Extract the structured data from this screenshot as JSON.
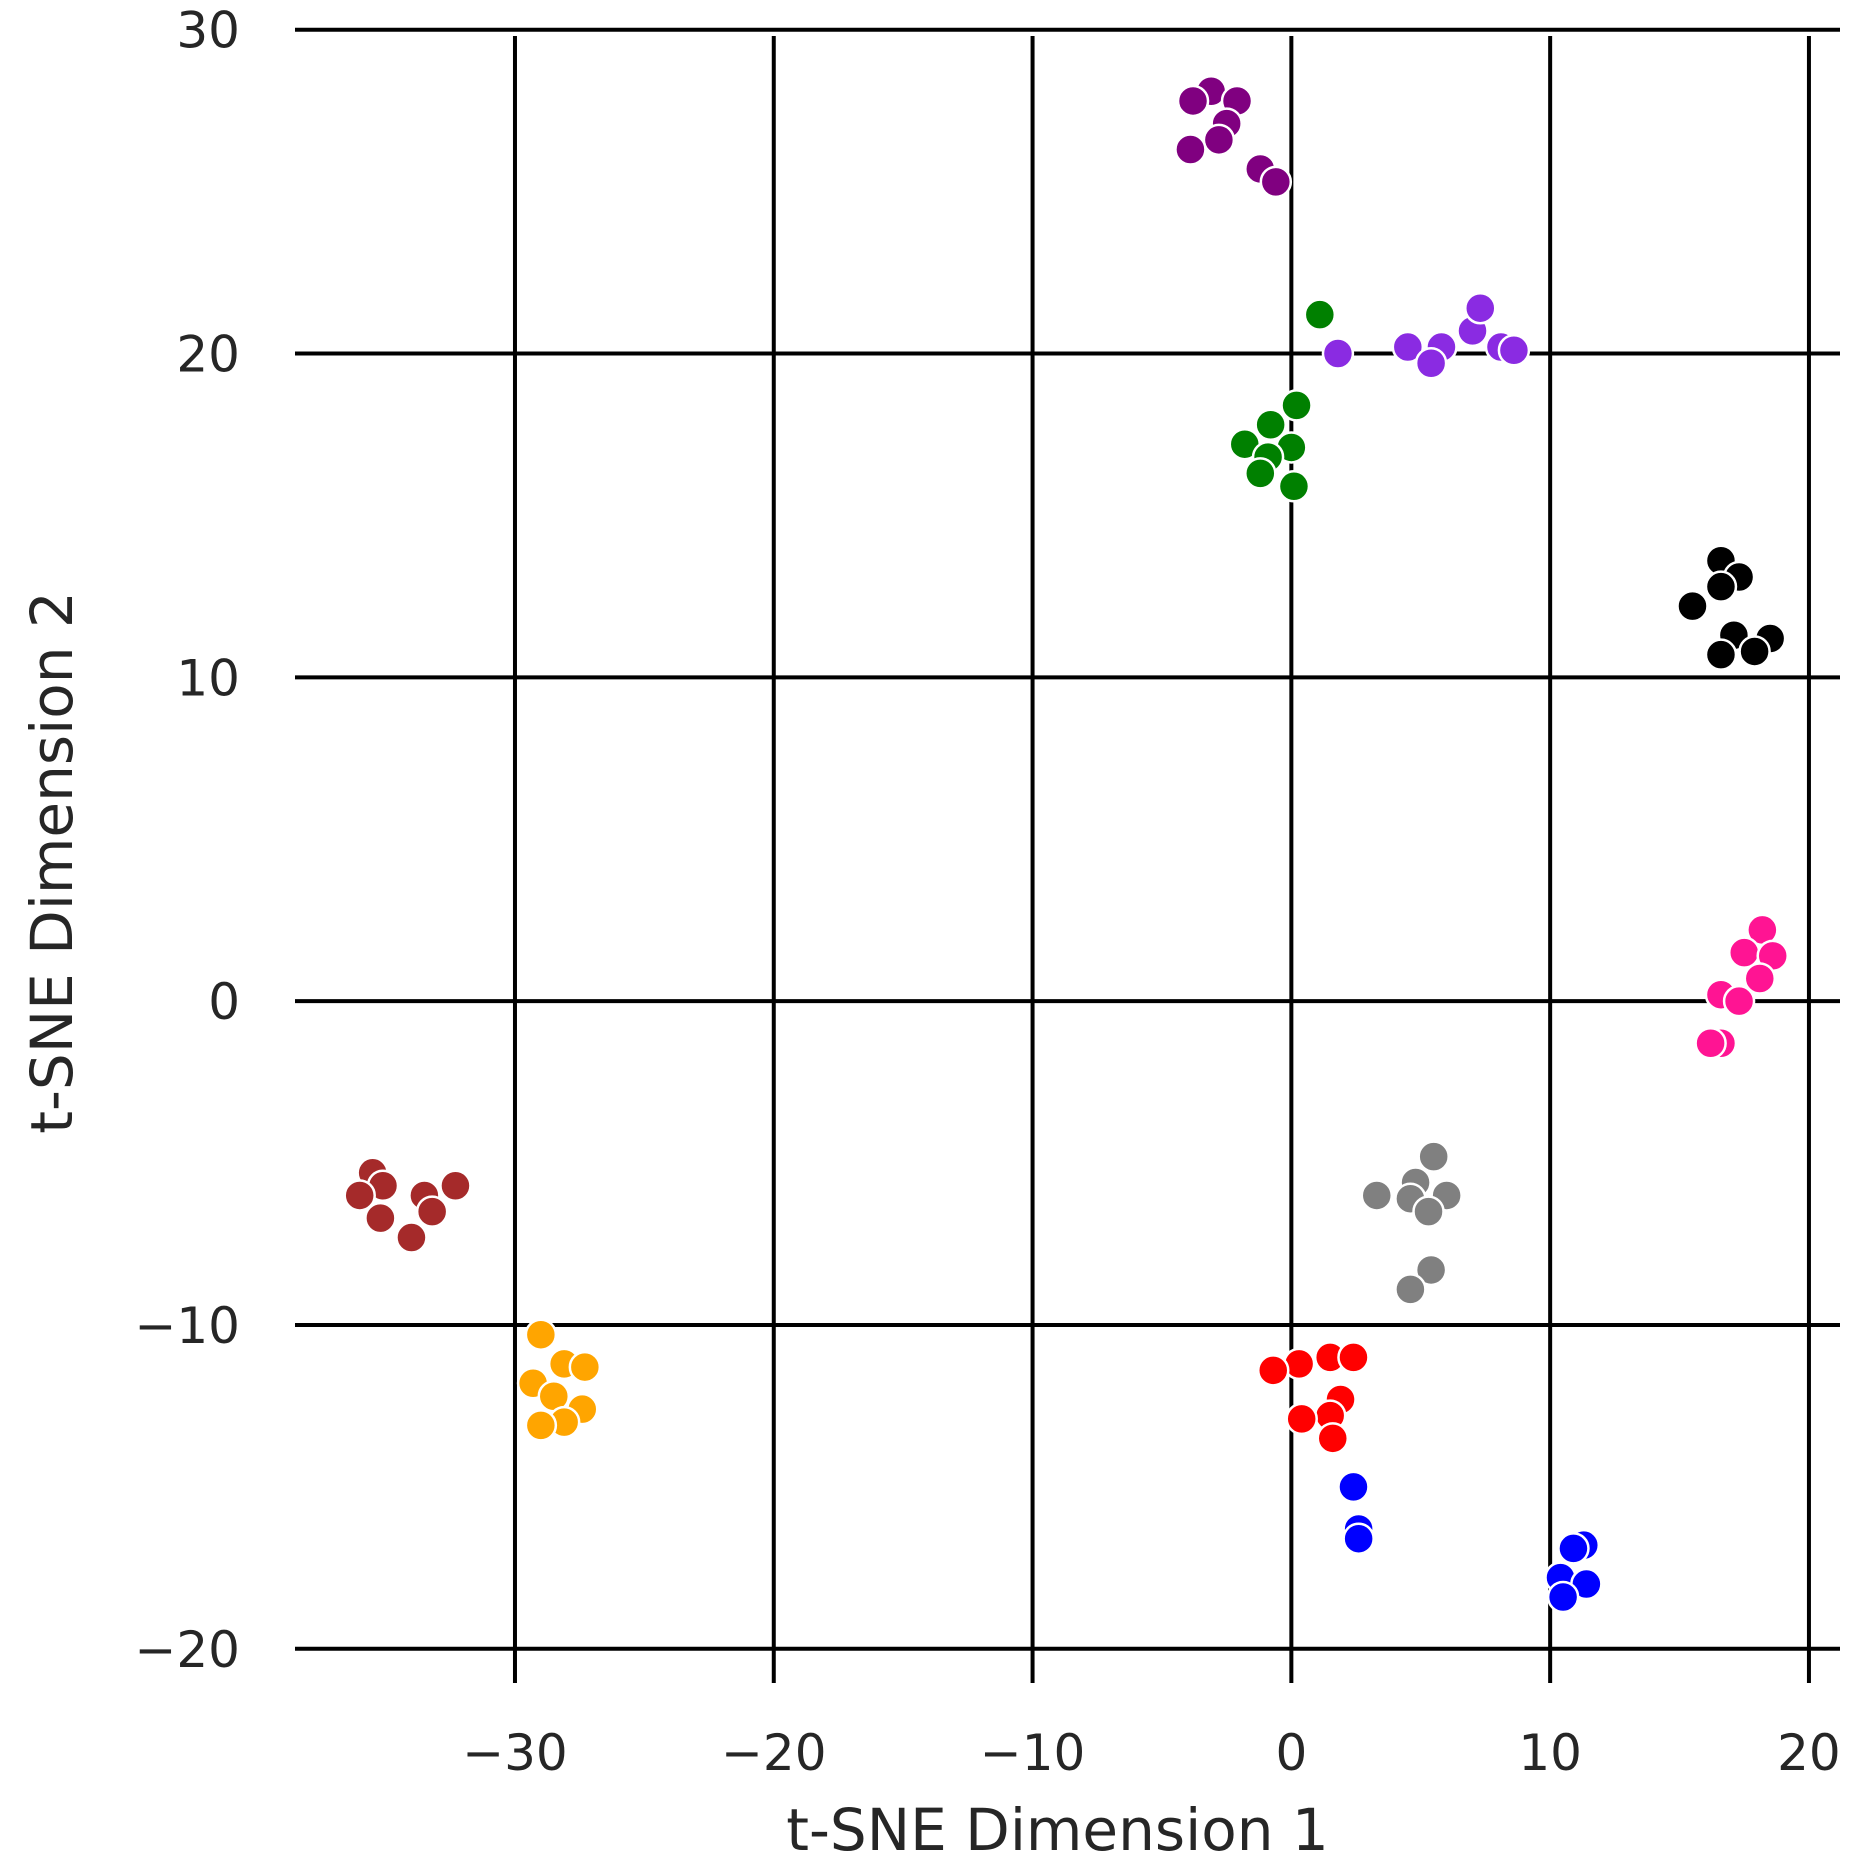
{
  "chart_data": {
    "type": "scatter",
    "title": "",
    "xlabel": "t-SNE Dimension 1",
    "ylabel": "t-SNE Dimension 2",
    "xlim": [
      -38.5,
      21.2
    ],
    "ylim": [
      -20.5,
      30.3
    ],
    "xticks": [
      -30,
      -20,
      -10,
      0,
      10,
      20
    ],
    "yticks": [
      -20,
      -10,
      0,
      10,
      20,
      30
    ],
    "xtick_labels": [
      "−30",
      "−20",
      "−10",
      "0",
      "10",
      "20"
    ],
    "ytick_labels": [
      "−20",
      "−10",
      "0",
      "10",
      "20",
      "30"
    ],
    "grid": true,
    "series": [
      {
        "name": "purple",
        "color": "#800080",
        "points": [
          [
            -3.1,
            28.1
          ],
          [
            -3.8,
            27.8
          ],
          [
            -2.1,
            27.8
          ],
          [
            -2.5,
            27.1
          ],
          [
            -2.8,
            26.6
          ],
          [
            -3.9,
            26.3
          ],
          [
            -1.2,
            25.7
          ],
          [
            -0.6,
            25.3
          ]
        ]
      },
      {
        "name": "blueviolet",
        "color": "#8a2be2",
        "points": [
          [
            1.8,
            20.0
          ],
          [
            4.5,
            20.2
          ],
          [
            5.8,
            20.2
          ],
          [
            5.4,
            19.7
          ],
          [
            7.0,
            20.7
          ],
          [
            7.3,
            21.4
          ],
          [
            8.1,
            20.2
          ],
          [
            8.6,
            20.1
          ]
        ]
      },
      {
        "name": "green",
        "color": "#008000",
        "points": [
          [
            1.1,
            21.2
          ],
          [
            0.2,
            18.4
          ],
          [
            -0.8,
            17.8
          ],
          [
            -1.8,
            17.2
          ],
          [
            0.0,
            17.1
          ],
          [
            -0.9,
            16.8
          ],
          [
            -1.2,
            16.3
          ],
          [
            0.1,
            15.9
          ]
        ]
      },
      {
        "name": "black",
        "color": "#000000",
        "points": [
          [
            16.6,
            13.6
          ],
          [
            17.3,
            13.1
          ],
          [
            16.6,
            12.8
          ],
          [
            15.5,
            12.2
          ],
          [
            17.1,
            11.3
          ],
          [
            18.5,
            11.2
          ],
          [
            17.9,
            10.8
          ],
          [
            16.6,
            10.7
          ]
        ]
      },
      {
        "name": "deeppink",
        "color": "#ff1493",
        "points": [
          [
            18.2,
            2.2
          ],
          [
            17.5,
            1.5
          ],
          [
            18.6,
            1.4
          ],
          [
            18.1,
            0.7
          ],
          [
            16.6,
            0.2
          ],
          [
            17.3,
            0.0
          ],
          [
            16.6,
            -1.3
          ],
          [
            16.2,
            -1.3
          ]
        ]
      },
      {
        "name": "gray",
        "color": "#808080",
        "points": [
          [
            5.5,
            -4.8
          ],
          [
            4.8,
            -5.6
          ],
          [
            6.0,
            -6.0
          ],
          [
            3.3,
            -6.0
          ],
          [
            4.6,
            -6.1
          ],
          [
            5.3,
            -6.5
          ],
          [
            5.4,
            -8.3
          ],
          [
            4.6,
            -8.9
          ]
        ]
      },
      {
        "name": "brown",
        "color": "#a52a2a",
        "points": [
          [
            -35.5,
            -5.3
          ],
          [
            -35.1,
            -5.7
          ],
          [
            -32.3,
            -5.7
          ],
          [
            -36.0,
            -6.0
          ],
          [
            -33.5,
            -6.0
          ],
          [
            -33.2,
            -6.5
          ],
          [
            -35.2,
            -6.7
          ],
          [
            -34.0,
            -7.3
          ]
        ]
      },
      {
        "name": "orange",
        "color": "#ffa500",
        "points": [
          [
            -29.0,
            -10.3
          ],
          [
            -28.1,
            -11.2
          ],
          [
            -27.3,
            -11.3
          ],
          [
            -29.3,
            -11.8
          ],
          [
            -28.5,
            -12.2
          ],
          [
            -27.4,
            -12.6
          ],
          [
            -28.1,
            -13.0
          ],
          [
            -29.0,
            -13.1
          ]
        ]
      },
      {
        "name": "red",
        "color": "#ff0000",
        "points": [
          [
            1.5,
            -11.0
          ],
          [
            2.4,
            -11.0
          ],
          [
            0.3,
            -11.2
          ],
          [
            -0.7,
            -11.4
          ],
          [
            1.9,
            -12.3
          ],
          [
            1.5,
            -12.8
          ],
          [
            0.4,
            -12.9
          ],
          [
            1.6,
            -13.5
          ]
        ]
      },
      {
        "name": "blue",
        "color": "#0000ff",
        "points": [
          [
            2.4,
            -15.0
          ],
          [
            2.6,
            -16.3
          ],
          [
            2.6,
            -16.6
          ],
          [
            11.3,
            -16.8
          ],
          [
            10.9,
            -16.9
          ],
          [
            10.4,
            -17.8
          ],
          [
            11.4,
            -18.0
          ],
          [
            10.5,
            -18.4
          ]
        ]
      }
    ]
  }
}
